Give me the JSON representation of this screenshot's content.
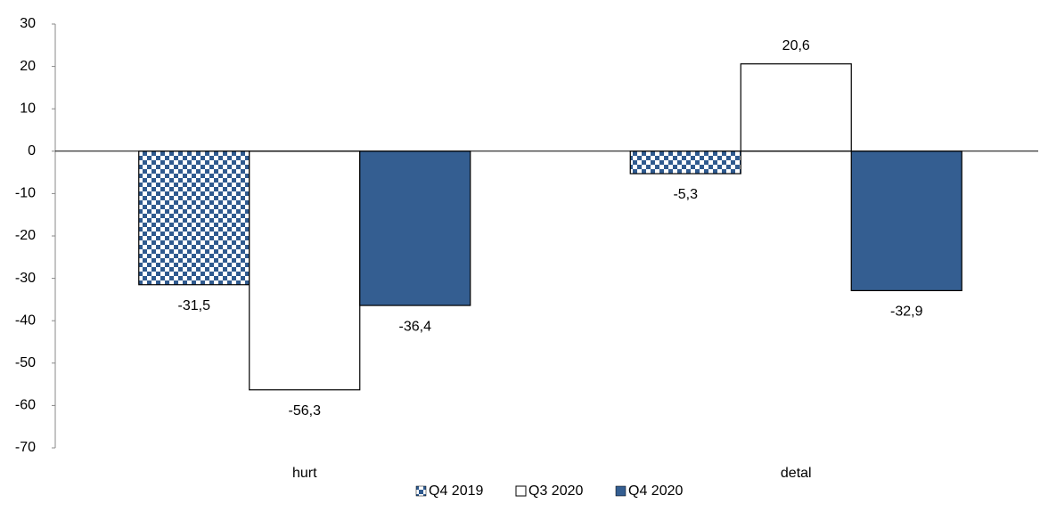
{
  "chart_data": {
    "type": "bar",
    "categories": [
      "hurt",
      "detal"
    ],
    "series": [
      {
        "name": "Q4 2019",
        "color": "#2f5a8f",
        "pattern": "checkerboard",
        "values": [
          -31.5,
          -5.3
        ],
        "value_labels": [
          "-31,5",
          "-5,3"
        ]
      },
      {
        "name": "Q3 2020",
        "color": "#ffffff",
        "values": [
          -56.3,
          20.6
        ],
        "value_labels": [
          "-56,3",
          "20,6"
        ]
      },
      {
        "name": "Q4 2020",
        "color": "#345e91",
        "values": [
          -36.4,
          -32.9
        ],
        "value_labels": [
          "-36,4",
          "-32,9"
        ]
      }
    ],
    "ylim": [
      -70,
      30
    ],
    "yticks": [
      30,
      20,
      10,
      0,
      -10,
      -20,
      -30,
      -40,
      -50,
      -60,
      -70
    ],
    "legend": "bottom"
  }
}
